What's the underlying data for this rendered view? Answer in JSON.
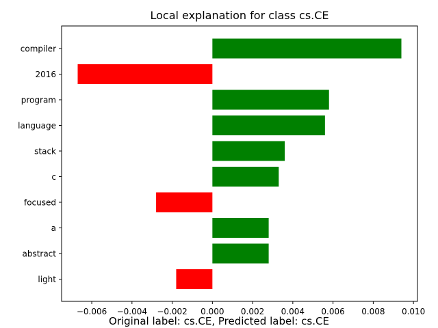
{
  "chart_data": {
    "type": "bar",
    "orientation": "horizontal",
    "title": "Local explanation for class cs.CE",
    "caption": "Original label: cs.CE, Predicted label: cs.CE",
    "categories": [
      "compiler",
      "2016",
      "program",
      "language",
      "stack",
      "c",
      "focused",
      "a",
      "abstract",
      "light"
    ],
    "values": [
      0.0094,
      -0.0067,
      0.0058,
      0.0056,
      0.0036,
      0.0033,
      -0.0028,
      0.0028,
      0.0028,
      -0.0018
    ],
    "positive_color": "#008000",
    "negative_color": "#ff0000",
    "xlim": [
      -0.0075,
      0.0102
    ],
    "xticks": [
      -0.006,
      -0.004,
      -0.002,
      0.0,
      0.002,
      0.004,
      0.006,
      0.008,
      0.01
    ],
    "xtick_labels": [
      "−0.006",
      "−0.004",
      "−0.002",
      "0.000",
      "0.002",
      "0.004",
      "0.006",
      "0.008",
      "0.010"
    ],
    "grid": false,
    "legend": "none"
  }
}
